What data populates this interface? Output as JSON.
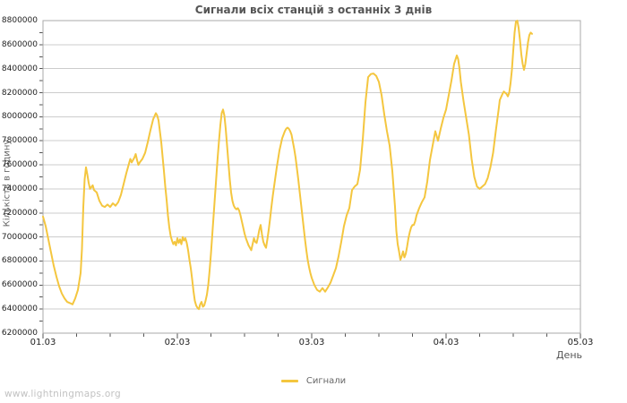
{
  "footer": {
    "watermark": "www.lightningmaps.org"
  },
  "colors": {
    "background": "#FFFFFF",
    "line": "#F4C63F",
    "grid": "#CCCCCC",
    "frame": "#AAAAAA",
    "tick": "#555555",
    "title_text": "#555555",
    "tick_text": "#222222",
    "axis_title_text": "#666666",
    "legend_text": "#666666",
    "watermark_text": "#C2C2C2"
  },
  "chart_data": {
    "type": "line",
    "title": "Сигнали всіх станцій з останніх 3 днів",
    "xlabel": "День",
    "ylabel": "Кількість в годину",
    "grid": "horizontal",
    "legend_position": "bottom-center",
    "x_axis": {
      "tick_labels": [
        "01.03",
        "02.03",
        "03.03",
        "04.03",
        "05.03"
      ],
      "range_days": [
        0,
        4
      ],
      "minor_tick_interval_days": 0.25
    },
    "y_axis": {
      "min": 6200000,
      "max": 8800000,
      "tick_step": 200000,
      "minor_tick_step": 100000,
      "tick_labels": [
        "8800000",
        "8600000",
        "8400000",
        "8200000",
        "8000000",
        "7800000",
        "7600000",
        "7400000",
        "7200000",
        "7000000",
        "6800000",
        "6600000",
        "6400000",
        "6200000"
      ]
    },
    "series": [
      {
        "name": "Сигнали",
        "color": "#F4C63F",
        "points": [
          [
            0,
            7170000
          ],
          [
            0.02,
            7090000
          ],
          [
            0.04,
            6980000
          ],
          [
            0.06,
            6870000
          ],
          [
            0.08,
            6760000
          ],
          [
            0.1,
            6670000
          ],
          [
            0.12,
            6590000
          ],
          [
            0.14,
            6530000
          ],
          [
            0.16,
            6490000
          ],
          [
            0.18,
            6460000
          ],
          [
            0.2,
            6450000
          ],
          [
            0.22,
            6440000
          ],
          [
            0.24,
            6490000
          ],
          [
            0.26,
            6560000
          ],
          [
            0.28,
            6700000
          ],
          [
            0.29,
            6900000
          ],
          [
            0.3,
            7250000
          ],
          [
            0.31,
            7480000
          ],
          [
            0.32,
            7580000
          ],
          [
            0.33,
            7520000
          ],
          [
            0.34,
            7450000
          ],
          [
            0.35,
            7400000
          ],
          [
            0.37,
            7430000
          ],
          [
            0.38,
            7390000
          ],
          [
            0.4,
            7370000
          ],
          [
            0.42,
            7300000
          ],
          [
            0.44,
            7260000
          ],
          [
            0.46,
            7250000
          ],
          [
            0.48,
            7270000
          ],
          [
            0.5,
            7250000
          ],
          [
            0.52,
            7280000
          ],
          [
            0.54,
            7260000
          ],
          [
            0.56,
            7290000
          ],
          [
            0.58,
            7350000
          ],
          [
            0.6,
            7440000
          ],
          [
            0.62,
            7530000
          ],
          [
            0.64,
            7610000
          ],
          [
            0.65,
            7650000
          ],
          [
            0.66,
            7620000
          ],
          [
            0.68,
            7660000
          ],
          [
            0.69,
            7690000
          ],
          [
            0.7,
            7640000
          ],
          [
            0.71,
            7600000
          ],
          [
            0.72,
            7620000
          ],
          [
            0.74,
            7650000
          ],
          [
            0.76,
            7700000
          ],
          [
            0.78,
            7790000
          ],
          [
            0.8,
            7890000
          ],
          [
            0.82,
            7980000
          ],
          [
            0.84,
            8030000
          ],
          [
            0.85,
            8010000
          ],
          [
            0.86,
            7970000
          ],
          [
            0.88,
            7790000
          ],
          [
            0.9,
            7550000
          ],
          [
            0.91,
            7420000
          ],
          [
            0.92,
            7310000
          ],
          [
            0.93,
            7180000
          ],
          [
            0.94,
            7080000
          ],
          [
            0.95,
            7010000
          ],
          [
            0.96,
            6970000
          ],
          [
            0.97,
            6940000
          ],
          [
            0.98,
            6960000
          ],
          [
            0.99,
            6930000
          ],
          [
            1,
            6990000
          ],
          [
            1.01,
            6950000
          ],
          [
            1.02,
            6980000
          ],
          [
            1.03,
            6940000
          ],
          [
            1.04,
            7000000
          ],
          [
            1.05,
            6970000
          ],
          [
            1.06,
            6990000
          ],
          [
            1.07,
            6950000
          ],
          [
            1.08,
            6890000
          ],
          [
            1.09,
            6810000
          ],
          [
            1.1,
            6740000
          ],
          [
            1.11,
            6650000
          ],
          [
            1.12,
            6550000
          ],
          [
            1.13,
            6470000
          ],
          [
            1.14,
            6430000
          ],
          [
            1.15,
            6410000
          ],
          [
            1.16,
            6400000
          ],
          [
            1.17,
            6440000
          ],
          [
            1.18,
            6460000
          ],
          [
            1.19,
            6420000
          ],
          [
            1.2,
            6430000
          ],
          [
            1.21,
            6470000
          ],
          [
            1.22,
            6520000
          ],
          [
            1.23,
            6600000
          ],
          [
            1.24,
            6720000
          ],
          [
            1.25,
            6860000
          ],
          [
            1.26,
            7020000
          ],
          [
            1.27,
            7180000
          ],
          [
            1.28,
            7340000
          ],
          [
            1.29,
            7500000
          ],
          [
            1.3,
            7660000
          ],
          [
            1.31,
            7800000
          ],
          [
            1.32,
            7930000
          ],
          [
            1.33,
            8030000
          ],
          [
            1.34,
            8060000
          ],
          [
            1.35,
            8010000
          ],
          [
            1.36,
            7900000
          ],
          [
            1.37,
            7760000
          ],
          [
            1.38,
            7620000
          ],
          [
            1.39,
            7480000
          ],
          [
            1.4,
            7370000
          ],
          [
            1.41,
            7300000
          ],
          [
            1.42,
            7260000
          ],
          [
            1.43,
            7240000
          ],
          [
            1.44,
            7230000
          ],
          [
            1.45,
            7240000
          ],
          [
            1.46,
            7220000
          ],
          [
            1.47,
            7180000
          ],
          [
            1.48,
            7130000
          ],
          [
            1.49,
            7080000
          ],
          [
            1.5,
            7030000
          ],
          [
            1.51,
            6990000
          ],
          [
            1.52,
            6960000
          ],
          [
            1.53,
            6930000
          ],
          [
            1.54,
            6910000
          ],
          [
            1.55,
            6890000
          ],
          [
            1.56,
            6940000
          ],
          [
            1.57,
            6990000
          ],
          [
            1.58,
            6960000
          ],
          [
            1.59,
            6950000
          ],
          [
            1.6,
            7000000
          ],
          [
            1.61,
            7060000
          ],
          [
            1.62,
            7100000
          ],
          [
            1.63,
            7020000
          ],
          [
            1.64,
            6960000
          ],
          [
            1.65,
            6930000
          ],
          [
            1.66,
            6910000
          ],
          [
            1.67,
            6980000
          ],
          [
            1.68,
            7060000
          ],
          [
            1.69,
            7150000
          ],
          [
            1.7,
            7250000
          ],
          [
            1.71,
            7340000
          ],
          [
            1.72,
            7420000
          ],
          [
            1.73,
            7500000
          ],
          [
            1.74,
            7580000
          ],
          [
            1.75,
            7650000
          ],
          [
            1.76,
            7720000
          ],
          [
            1.77,
            7770000
          ],
          [
            1.78,
            7820000
          ],
          [
            1.79,
            7850000
          ],
          [
            1.8,
            7880000
          ],
          [
            1.81,
            7900000
          ],
          [
            1.82,
            7910000
          ],
          [
            1.83,
            7900000
          ],
          [
            1.84,
            7880000
          ],
          [
            1.85,
            7850000
          ],
          [
            1.86,
            7790000
          ],
          [
            1.87,
            7730000
          ],
          [
            1.88,
            7660000
          ],
          [
            1.89,
            7570000
          ],
          [
            1.9,
            7480000
          ],
          [
            1.91,
            7380000
          ],
          [
            1.92,
            7280000
          ],
          [
            1.93,
            7180000
          ],
          [
            1.94,
            7080000
          ],
          [
            1.95,
            6980000
          ],
          [
            1.96,
            6890000
          ],
          [
            1.97,
            6810000
          ],
          [
            1.98,
            6750000
          ],
          [
            1.99,
            6700000
          ],
          [
            2,
            6660000
          ],
          [
            2.02,
            6600000
          ],
          [
            2.04,
            6560000
          ],
          [
            2.06,
            6545000
          ],
          [
            2.08,
            6575000
          ],
          [
            2.1,
            6545000
          ],
          [
            2.12,
            6580000
          ],
          [
            2.14,
            6620000
          ],
          [
            2.16,
            6680000
          ],
          [
            2.18,
            6740000
          ],
          [
            2.2,
            6840000
          ],
          [
            2.22,
            6960000
          ],
          [
            2.24,
            7090000
          ],
          [
            2.26,
            7180000
          ],
          [
            2.28,
            7240000
          ],
          [
            2.3,
            7390000
          ],
          [
            2.32,
            7420000
          ],
          [
            2.34,
            7440000
          ],
          [
            2.36,
            7560000
          ],
          [
            2.38,
            7810000
          ],
          [
            2.4,
            8120000
          ],
          [
            2.42,
            8330000
          ],
          [
            2.44,
            8355000
          ],
          [
            2.46,
            8360000
          ],
          [
            2.48,
            8340000
          ],
          [
            2.5,
            8290000
          ],
          [
            2.52,
            8180000
          ],
          [
            2.54,
            8020000
          ],
          [
            2.56,
            7880000
          ],
          [
            2.58,
            7760000
          ],
          [
            2.6,
            7550000
          ],
          [
            2.62,
            7250000
          ],
          [
            2.63,
            7050000
          ],
          [
            2.64,
            6940000
          ],
          [
            2.65,
            6880000
          ],
          [
            2.66,
            6810000
          ],
          [
            2.67,
            6840000
          ],
          [
            2.68,
            6880000
          ],
          [
            2.69,
            6830000
          ],
          [
            2.7,
            6860000
          ],
          [
            2.71,
            6920000
          ],
          [
            2.72,
            6990000
          ],
          [
            2.73,
            7040000
          ],
          [
            2.74,
            7080000
          ],
          [
            2.75,
            7100000
          ],
          [
            2.76,
            7100000
          ],
          [
            2.77,
            7130000
          ],
          [
            2.78,
            7180000
          ],
          [
            2.8,
            7240000
          ],
          [
            2.82,
            7290000
          ],
          [
            2.84,
            7330000
          ],
          [
            2.86,
            7460000
          ],
          [
            2.88,
            7640000
          ],
          [
            2.9,
            7760000
          ],
          [
            2.92,
            7880000
          ],
          [
            2.93,
            7840000
          ],
          [
            2.94,
            7800000
          ],
          [
            2.96,
            7900000
          ],
          [
            2.98,
            7990000
          ],
          [
            3,
            8060000
          ],
          [
            3.02,
            8180000
          ],
          [
            3.04,
            8300000
          ],
          [
            3.06,
            8440000
          ],
          [
            3.08,
            8510000
          ],
          [
            3.09,
            8480000
          ],
          [
            3.1,
            8400000
          ],
          [
            3.11,
            8290000
          ],
          [
            3.13,
            8130000
          ],
          [
            3.15,
            7990000
          ],
          [
            3.17,
            7850000
          ],
          [
            3.19,
            7650000
          ],
          [
            3.21,
            7500000
          ],
          [
            3.23,
            7420000
          ],
          [
            3.25,
            7400000
          ],
          [
            3.27,
            7420000
          ],
          [
            3.29,
            7440000
          ],
          [
            3.31,
            7490000
          ],
          [
            3.33,
            7580000
          ],
          [
            3.35,
            7700000
          ],
          [
            3.37,
            7880000
          ],
          [
            3.39,
            8050000
          ],
          [
            3.4,
            8140000
          ],
          [
            3.42,
            8190000
          ],
          [
            3.43,
            8210000
          ],
          [
            3.45,
            8190000
          ],
          [
            3.46,
            8170000
          ],
          [
            3.47,
            8200000
          ],
          [
            3.48,
            8280000
          ],
          [
            3.49,
            8390000
          ],
          [
            3.5,
            8550000
          ],
          [
            3.51,
            8700000
          ],
          [
            3.52,
            8790000
          ],
          [
            3.53,
            8800000
          ],
          [
            3.54,
            8740000
          ],
          [
            3.55,
            8640000
          ],
          [
            3.56,
            8520000
          ],
          [
            3.57,
            8440000
          ],
          [
            3.58,
            8390000
          ],
          [
            3.59,
            8440000
          ],
          [
            3.6,
            8530000
          ],
          [
            3.61,
            8620000
          ],
          [
            3.62,
            8680000
          ],
          [
            3.63,
            8700000
          ],
          [
            3.64,
            8690000
          ]
        ]
      }
    ]
  }
}
